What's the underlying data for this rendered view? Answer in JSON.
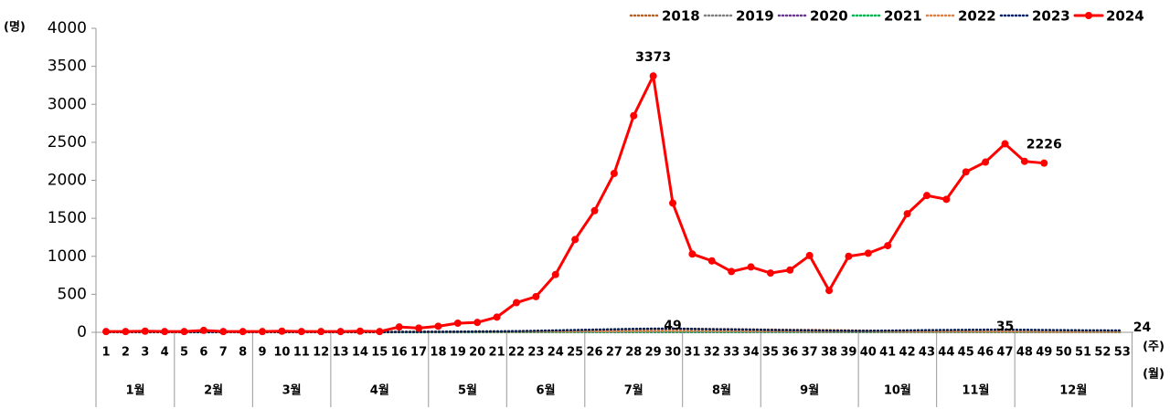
{
  "chart_data": {
    "type": "line",
    "y_unit": "(명)",
    "x_unit": "(주)",
    "month_unit": "(월)",
    "categories": [
      "1",
      "2",
      "3",
      "4",
      "5",
      "6",
      "7",
      "8",
      "9",
      "10",
      "11",
      "12",
      "13",
      "14",
      "15",
      "16",
      "17",
      "18",
      "19",
      "20",
      "21",
      "22",
      "23",
      "24",
      "25",
      "26",
      "27",
      "28",
      "29",
      "30",
      "31",
      "32",
      "33",
      "34",
      "35",
      "36",
      "37",
      "38",
      "39",
      "40",
      "41",
      "42",
      "43",
      "44",
      "45",
      "46",
      "47",
      "48",
      "49",
      "50",
      "51",
      "52",
      "53"
    ],
    "month_groups": [
      {
        "label": "1월",
        "span": 4
      },
      {
        "label": "2월",
        "span": 4
      },
      {
        "label": "3월",
        "span": 4
      },
      {
        "label": "4월",
        "span": 5
      },
      {
        "label": "5월",
        "span": 4
      },
      {
        "label": "6월",
        "span": 4
      },
      {
        "label": "7월",
        "span": 5
      },
      {
        "label": "8월",
        "span": 4
      },
      {
        "label": "9월",
        "span": 5
      },
      {
        "label": "10월",
        "span": 4
      },
      {
        "label": "11월",
        "span": 4
      },
      {
        "label": "12월",
        "span": 6
      }
    ],
    "ylim": [
      0,
      4000
    ],
    "yticks": [
      0,
      500,
      1000,
      1500,
      2000,
      2500,
      3000,
      3500,
      4000
    ],
    "series": [
      {
        "name": "2018",
        "color": "#c55a11",
        "style": "dotted",
        "values": [
          5,
          5,
          5,
          5,
          5,
          5,
          5,
          5,
          5,
          5,
          5,
          5,
          5,
          5,
          5,
          5,
          5,
          5,
          8,
          10,
          10,
          12,
          15,
          18,
          20,
          25,
          30,
          35,
          40,
          45,
          45,
          42,
          40,
          38,
          35,
          32,
          30,
          28,
          25,
          22,
          20,
          18,
          15,
          15,
          15,
          12,
          12,
          10,
          10,
          8,
          8,
          5,
          5
        ]
      },
      {
        "name": "2019",
        "color": "#7f7f7f",
        "style": "dotted",
        "values": [
          8,
          8,
          8,
          8,
          8,
          8,
          8,
          8,
          8,
          8,
          8,
          8,
          8,
          8,
          8,
          8,
          10,
          10,
          10,
          12,
          12,
          15,
          15,
          15,
          18,
          18,
          20,
          20,
          20,
          20,
          18,
          18,
          15,
          15,
          15,
          15,
          12,
          12,
          12,
          12,
          10,
          10,
          10,
          10,
          10,
          10,
          10,
          8,
          8,
          8,
          8,
          8,
          8
        ]
      },
      {
        "name": "2020",
        "color": "#7030a0",
        "style": "dotted",
        "values": [
          3,
          3,
          3,
          3,
          3,
          3,
          3,
          3,
          3,
          3,
          3,
          3,
          3,
          3,
          3,
          3,
          3,
          3,
          3,
          3,
          3,
          3,
          3,
          3,
          3,
          3,
          3,
          3,
          3,
          3,
          3,
          3,
          3,
          3,
          3,
          3,
          3,
          3,
          3,
          3,
          3,
          3,
          3,
          3,
          3,
          3,
          3,
          3,
          3,
          3,
          3,
          3,
          3
        ]
      },
      {
        "name": "2021",
        "color": "#00b050",
        "style": "dotted",
        "values": [
          2,
          2,
          2,
          2,
          2,
          2,
          2,
          2,
          2,
          2,
          2,
          2,
          2,
          2,
          2,
          2,
          2,
          2,
          2,
          2,
          2,
          3,
          3,
          3,
          3,
          3,
          4,
          4,
          4,
          4,
          4,
          4,
          4,
          4,
          4,
          4,
          4,
          4,
          4,
          4,
          4,
          4,
          5,
          5,
          5,
          5,
          5,
          5,
          5,
          5,
          5,
          5,
          5
        ]
      },
      {
        "name": "2022",
        "color": "#ed7d31",
        "style": "dotted",
        "values": [
          5,
          5,
          5,
          5,
          5,
          5,
          5,
          5,
          5,
          5,
          5,
          5,
          5,
          5,
          5,
          5,
          6,
          6,
          6,
          8,
          8,
          10,
          10,
          12,
          12,
          15,
          15,
          18,
          18,
          20,
          20,
          18,
          18,
          15,
          15,
          15,
          12,
          12,
          12,
          12,
          10,
          10,
          10,
          10,
          10,
          10,
          10,
          10,
          8,
          8,
          8,
          8,
          8
        ]
      },
      {
        "name": "2023",
        "color": "#002060",
        "style": "dotted",
        "values": [
          3,
          3,
          3,
          3,
          3,
          3,
          3,
          3,
          3,
          3,
          3,
          3,
          3,
          3,
          3,
          4,
          5,
          6,
          8,
          10,
          12,
          15,
          20,
          25,
          30,
          35,
          40,
          45,
          48,
          49,
          45,
          40,
          38,
          35,
          30,
          28,
          25,
          22,
          20,
          20,
          22,
          25,
          28,
          30,
          32,
          34,
          35,
          33,
          30,
          28,
          26,
          25,
          24
        ],
        "value_labels": [
          null,
          null,
          null,
          null,
          null,
          null,
          null,
          null,
          null,
          null,
          null,
          null,
          null,
          null,
          null,
          null,
          null,
          null,
          null,
          null,
          null,
          null,
          null,
          null,
          null,
          null,
          null,
          null,
          null,
          "49",
          null,
          null,
          null,
          null,
          null,
          null,
          null,
          null,
          null,
          null,
          null,
          null,
          null,
          null,
          null,
          null,
          "35",
          null,
          null,
          null,
          null,
          null,
          "24"
        ]
      },
      {
        "name": "2024",
        "color": "#ff0000",
        "style": "solid",
        "values": [
          10,
          10,
          15,
          10,
          10,
          25,
          10,
          10,
          10,
          15,
          10,
          10,
          10,
          15,
          10,
          70,
          55,
          80,
          120,
          130,
          200,
          390,
          470,
          760,
          1220,
          1600,
          2090,
          2850,
          3373,
          1700,
          1030,
          940,
          800,
          860,
          780,
          820,
          1010,
          550,
          1000,
          1040,
          1140,
          1560,
          1800,
          1750,
          2110,
          2240,
          2480,
          2250,
          2226,
          null,
          null,
          null,
          null
        ],
        "value_labels": [
          null,
          null,
          null,
          null,
          null,
          null,
          null,
          null,
          null,
          null,
          null,
          null,
          null,
          null,
          null,
          null,
          null,
          null,
          null,
          null,
          null,
          null,
          null,
          null,
          null,
          null,
          null,
          null,
          "3373",
          null,
          null,
          null,
          null,
          null,
          null,
          null,
          null,
          null,
          null,
          null,
          null,
          null,
          null,
          null,
          null,
          null,
          null,
          null,
          "2226",
          null,
          null,
          null,
          null
        ]
      }
    ]
  }
}
